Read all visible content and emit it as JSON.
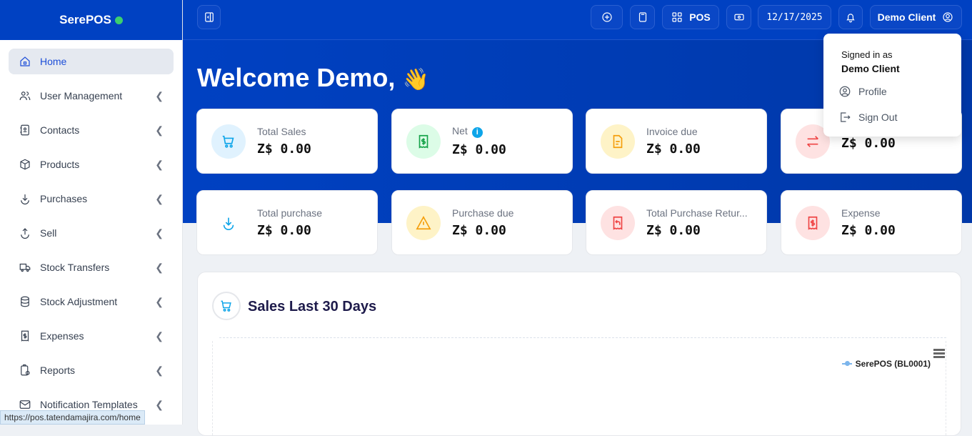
{
  "brand": {
    "name": "SerePOS",
    "status_color": "#3ccf6e"
  },
  "sidebar": {
    "items": [
      {
        "label": "Home",
        "icon": "home-icon",
        "active": true
      },
      {
        "label": "User Management",
        "icon": "users-icon"
      },
      {
        "label": "Contacts",
        "icon": "contacts-icon"
      },
      {
        "label": "Products",
        "icon": "box-icon"
      },
      {
        "label": "Purchases",
        "icon": "download-icon"
      },
      {
        "label": "Sell",
        "icon": "upload-icon"
      },
      {
        "label": "Stock Transfers",
        "icon": "truck-icon"
      },
      {
        "label": "Stock Adjustment",
        "icon": "database-icon"
      },
      {
        "label": "Expenses",
        "icon": "receipt-icon"
      },
      {
        "label": "Reports",
        "icon": "report-icon"
      },
      {
        "label": "Notification Templates",
        "icon": "mail-icon"
      }
    ]
  },
  "topbar": {
    "pos_label": "POS",
    "date": "12/17/2025",
    "user": "Demo Client"
  },
  "welcome": "Welcome Demo,",
  "welcome_emoji": "👋",
  "cards": [
    {
      "label": "Total Sales",
      "value": "Z$ 0.00",
      "icon": "cart-icon",
      "color": "#0ea5e9",
      "bg": "#e0f2fe"
    },
    {
      "label": "Net",
      "value": "Z$ 0.00",
      "icon": "receipt-dollar-icon",
      "color": "#16a34a",
      "bg": "#dcfce7",
      "info": true
    },
    {
      "label": "Invoice due",
      "value": "Z$ 0.00",
      "icon": "file-icon",
      "color": "#f59e0b",
      "bg": "#fef3c7"
    },
    {
      "label": "",
      "value": "Z$ 0.00",
      "icon": "transfer-icon",
      "color": "#ef4444",
      "bg": "#fee2e2"
    },
    {
      "label": "Total purchase",
      "value": "Z$ 0.00",
      "icon": "download-icon",
      "color": "#0ea5e9",
      "bg": "#ffffff"
    },
    {
      "label": "Purchase due",
      "value": "Z$ 0.00",
      "icon": "warning-icon",
      "color": "#f59e0b",
      "bg": "#fef3c7"
    },
    {
      "label": "Total Purchase Retur...",
      "value": "Z$ 0.00",
      "icon": "return-icon",
      "color": "#ef4444",
      "bg": "#fee2e2"
    },
    {
      "label": "Expense",
      "value": "Z$ 0.00",
      "icon": "receipt-dollar-icon",
      "color": "#ef4444",
      "bg": "#fee2e2"
    }
  ],
  "chart": {
    "title": "Sales Last 30 Days",
    "legend": "SerePOS (BL0001)"
  },
  "dropdown": {
    "signed_in_as": "Signed in as",
    "user": "Demo Client",
    "profile": "Profile",
    "sign_out": "Sign Out"
  },
  "status_url": "https://pos.tatendamajira.com/home"
}
